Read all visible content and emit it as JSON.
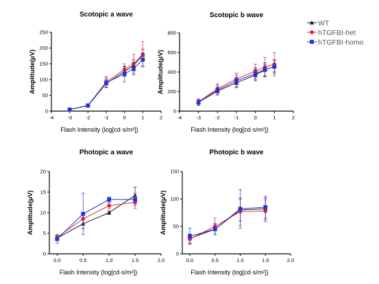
{
  "legend": [
    {
      "name": "WT",
      "color": "#1a1a1a",
      "marker": "triangle"
    },
    {
      "name": "hTGFBI-het",
      "color": "#e8232a",
      "marker": "circle"
    },
    {
      "name": "hTGFBI-homo",
      "color": "#2233dd",
      "marker": "square"
    }
  ],
  "chart_data": [
    {
      "type": "line",
      "title": "Scotopic a wave",
      "xlabel": "Flash Intensity (log[cd·s/m²])",
      "ylabel": "Amplitude(μV)",
      "xlim": [
        -4,
        2
      ],
      "ylim": [
        0,
        250
      ],
      "xticks": [
        -4,
        -3,
        -2,
        -1,
        0,
        1,
        2
      ],
      "xtick_labels": [
        "-4",
        "-3",
        "-2",
        "-1",
        "0",
        "1",
        "2"
      ],
      "yticks": [
        0,
        50,
        100,
        150,
        200,
        250
      ],
      "ytick_labels": [
        "0",
        "50",
        "100",
        "150",
        "200",
        "250"
      ],
      "x": [
        -3,
        -2,
        -1,
        0,
        0.5,
        1
      ],
      "series": [
        {
          "name": "WT",
          "values": [
            5,
            17,
            88,
            125,
            145,
            178
          ],
          "errors": [
            3,
            4,
            12,
            15,
            18,
            18
          ]
        },
        {
          "name": "hTGFBI-het",
          "values": [
            5,
            18,
            92,
            132,
            150,
            180
          ],
          "errors": [
            3,
            4,
            18,
            18,
            30,
            40
          ]
        },
        {
          "name": "hTGFBI-homo",
          "values": [
            5,
            18,
            90,
            118,
            135,
            163
          ],
          "errors": [
            3,
            3,
            15,
            25,
            20,
            20
          ]
        }
      ]
    },
    {
      "type": "line",
      "title": "Scotopic b wave",
      "xlabel": "Flash Intensity (log[cd·s/m²])",
      "ylabel": "Amplitude(μV)",
      "xlim": [
        -4,
        2
      ],
      "ylim": [
        0,
        800
      ],
      "xticks": [
        -4,
        -3,
        -2,
        -1,
        0,
        1,
        2
      ],
      "xtick_labels": [
        "-4",
        "-3",
        "-2",
        "-1",
        "0",
        "1",
        "2"
      ],
      "yticks": [
        0,
        200,
        400,
        600,
        800
      ],
      "ytick_labels": [
        "0",
        "200",
        "400",
        "600",
        "800"
      ],
      "x": [
        -3,
        -2,
        -1,
        0,
        0.5,
        1
      ],
      "series": [
        {
          "name": "WT",
          "values": [
            90,
            205,
            290,
            370,
            420,
            460
          ],
          "errors": [
            30,
            40,
            50,
            60,
            60,
            60
          ]
        },
        {
          "name": "hTGFBI-het",
          "values": [
            95,
            230,
            330,
            410,
            450,
            480
          ],
          "errors": [
            30,
            50,
            60,
            70,
            100,
            120
          ]
        },
        {
          "name": "hTGFBI-homo",
          "values": [
            90,
            215,
            310,
            385,
            425,
            455
          ],
          "errors": [
            30,
            50,
            60,
            60,
            70,
            70
          ]
        }
      ]
    },
    {
      "type": "line",
      "title": "Photopic a wave",
      "xlabel": "Flash Intensity (log[cd·s/m²])",
      "ylabel": "Amplitude(μV)",
      "xlim": [
        -0.15,
        2.0
      ],
      "ylim": [
        0,
        20
      ],
      "xticks": [
        0,
        0.5,
        1,
        1.5,
        2.0
      ],
      "xtick_labels": [
        "0.0",
        "0.5",
        "1.0",
        "1.5",
        "2.0"
      ],
      "yticks": [
        0,
        5,
        10,
        15,
        20
      ],
      "ytick_labels": [
        "0",
        "5",
        "10",
        "15",
        "20"
      ],
      "x": [
        0,
        0.5,
        1,
        1.5
      ],
      "series": [
        {
          "name": "WT",
          "values": [
            3.8,
            7.3,
            10,
            14.2
          ],
          "errors": [
            0.6,
            1.2,
            0.4,
            2.0
          ]
        },
        {
          "name": "hTGFBI-het",
          "values": [
            4.0,
            8.5,
            11.7,
            12.5
          ],
          "errors": [
            0.7,
            1.5,
            0.8,
            1.5
          ]
        },
        {
          "name": "hTGFBI-homo",
          "values": [
            3.6,
            9.7,
            13.2,
            13.2
          ],
          "errors": [
            1.0,
            5.0,
            0.6,
            1.5
          ]
        }
      ]
    },
    {
      "type": "line",
      "title": "Photopic b wave",
      "xlabel": "Flash Intensity (log[cd·s/m²])",
      "ylabel": "Amplitude(μV)",
      "xlim": [
        -0.15,
        2.0
      ],
      "ylim": [
        0,
        150
      ],
      "xticks": [
        0,
        0.5,
        1,
        1.5,
        2.0
      ],
      "xtick_labels": [
        "0.0",
        "0.5",
        "1.0",
        "1.5",
        "2.0"
      ],
      "yticks": [
        0,
        50,
        100,
        150
      ],
      "ytick_labels": [
        "0",
        "50",
        "100",
        "150"
      ],
      "x": [
        0,
        0.5,
        1,
        1.5
      ],
      "series": [
        {
          "name": "WT",
          "values": [
            28,
            45,
            80,
            82
          ],
          "errors": [
            8,
            10,
            20,
            20
          ]
        },
        {
          "name": "hTGFBI-het",
          "values": [
            27,
            50,
            77,
            78
          ],
          "errors": [
            8,
            15,
            25,
            20
          ]
        },
        {
          "name": "hTGFBI-homo",
          "values": [
            32,
            45,
            82,
            85
          ],
          "errors": [
            15,
            10,
            35,
            20
          ]
        }
      ]
    }
  ]
}
